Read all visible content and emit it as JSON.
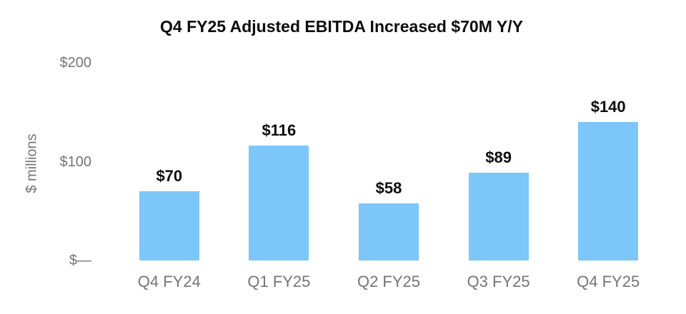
{
  "chart_data": {
    "type": "bar",
    "title": "Q4 FY25 Adjusted EBITDA Increased $70M Y/Y",
    "ylabel": "$ millions",
    "xlabel": "",
    "categories": [
      "Q4 FY24",
      "Q1 FY25",
      "Q2 FY25",
      "Q3 FY25",
      "Q4 FY25"
    ],
    "values": [
      70,
      116,
      58,
      89,
      140
    ],
    "value_labels": [
      "$70",
      "$116",
      "$58",
      "$89",
      "$140"
    ],
    "yticks": [
      {
        "value": 0,
        "label": "$—"
      },
      {
        "value": 100,
        "label": "$100"
      },
      {
        "value": 200,
        "label": "$200"
      }
    ],
    "ylim": [
      0,
      200
    ],
    "bar_color": "#7DC6FA",
    "title_color": "#0d0d0d",
    "label_color": "#0d0d0d",
    "axis_text_color": "#757575",
    "grid": false,
    "legend": false
  }
}
